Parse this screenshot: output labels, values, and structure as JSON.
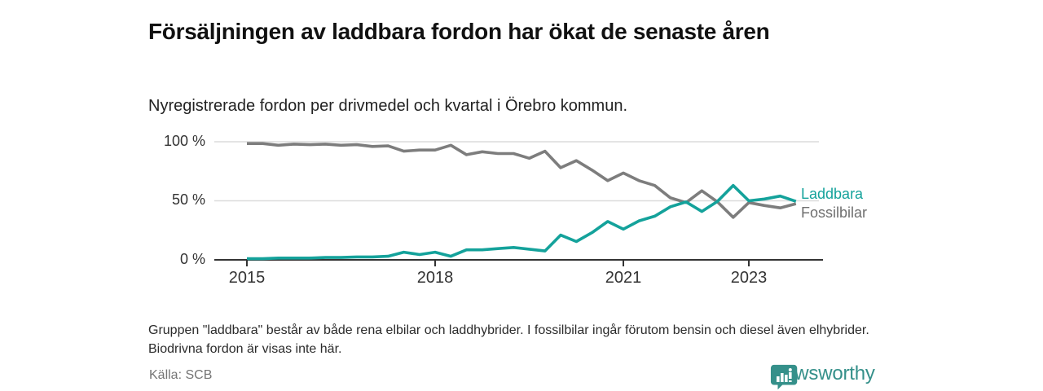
{
  "header": {
    "title": "Försäljningen av laddbara fordon har ökat de senaste åren",
    "subtitle": "Nyregistrerade fordon per drivmedel och kvartal i Örebro kommun."
  },
  "chart_data": {
    "type": "line",
    "x_unit": "quarter",
    "categories": [
      "2015 Q1",
      "2015 Q2",
      "2015 Q3",
      "2015 Q4",
      "2016 Q1",
      "2016 Q2",
      "2016 Q3",
      "2016 Q4",
      "2017 Q1",
      "2017 Q2",
      "2017 Q3",
      "2017 Q4",
      "2018 Q1",
      "2018 Q2",
      "2018 Q3",
      "2018 Q4",
      "2019 Q1",
      "2019 Q2",
      "2019 Q3",
      "2019 Q4",
      "2020 Q1",
      "2020 Q2",
      "2020 Q3",
      "2020 Q4",
      "2021 Q1",
      "2021 Q2",
      "2021 Q3",
      "2021 Q4",
      "2022 Q1",
      "2022 Q2",
      "2022 Q3",
      "2022 Q4",
      "2023 Q1",
      "2023 Q2",
      "2023 Q3",
      "2023 Q4"
    ],
    "series": [
      {
        "name": "Fossilbilar",
        "color": "#7d7d7d",
        "label_color": "#6f6f6f",
        "values": [
          98.5,
          98.5,
          97,
          98,
          97.5,
          98,
          97,
          97.5,
          96,
          96.5,
          92,
          93,
          93,
          97,
          89,
          91.5,
          90,
          90,
          86,
          92,
          78,
          84,
          76,
          67,
          73.5,
          67,
          63,
          52.5,
          48.5,
          58.5,
          49,
          36,
          48.5,
          46,
          44,
          47.5
        ]
      },
      {
        "name": "Laddbara",
        "color": "#14a29b",
        "label_color": "#14a29b",
        "values": [
          1,
          1,
          1.5,
          1.5,
          1.5,
          2,
          2,
          2.5,
          2.5,
          3,
          6.5,
          4.5,
          6.5,
          3,
          8.5,
          8.5,
          9.5,
          10.5,
          9,
          7.5,
          21,
          15.5,
          23,
          32.5,
          26,
          33,
          37,
          45,
          49,
          41,
          49.5,
          63,
          50,
          51.5,
          54,
          49.5
        ]
      }
    ],
    "ylim": [
      0,
      100
    ],
    "yticks": [
      {
        "label": "0 %",
        "value": 0
      },
      {
        "label": "50 %",
        "value": 50
      },
      {
        "label": "100 %",
        "value": 100
      }
    ],
    "xticks": [
      {
        "label": "2015",
        "index": 0
      },
      {
        "label": "2018",
        "index": 12
      },
      {
        "label": "2021",
        "index": 24
      },
      {
        "label": "2023",
        "index": 32
      }
    ],
    "grid": "horizontal",
    "legend_position": "right-of-line-end",
    "legend": [
      {
        "label": "Laddbara"
      },
      {
        "label": "Fossilbilar"
      }
    ]
  },
  "footnote": "Gruppen \"laddbara\" består av både rena elbilar och laddhybrider. I fossilbilar ingår förutom bensin och diesel även elhybrider. Biodrivna fordon är visas inte här.",
  "source": "Källa: SCB",
  "brand": {
    "name": "Newsworthy",
    "icon": "bar-chart-speech-bubble-icon",
    "color": "#35908a"
  }
}
